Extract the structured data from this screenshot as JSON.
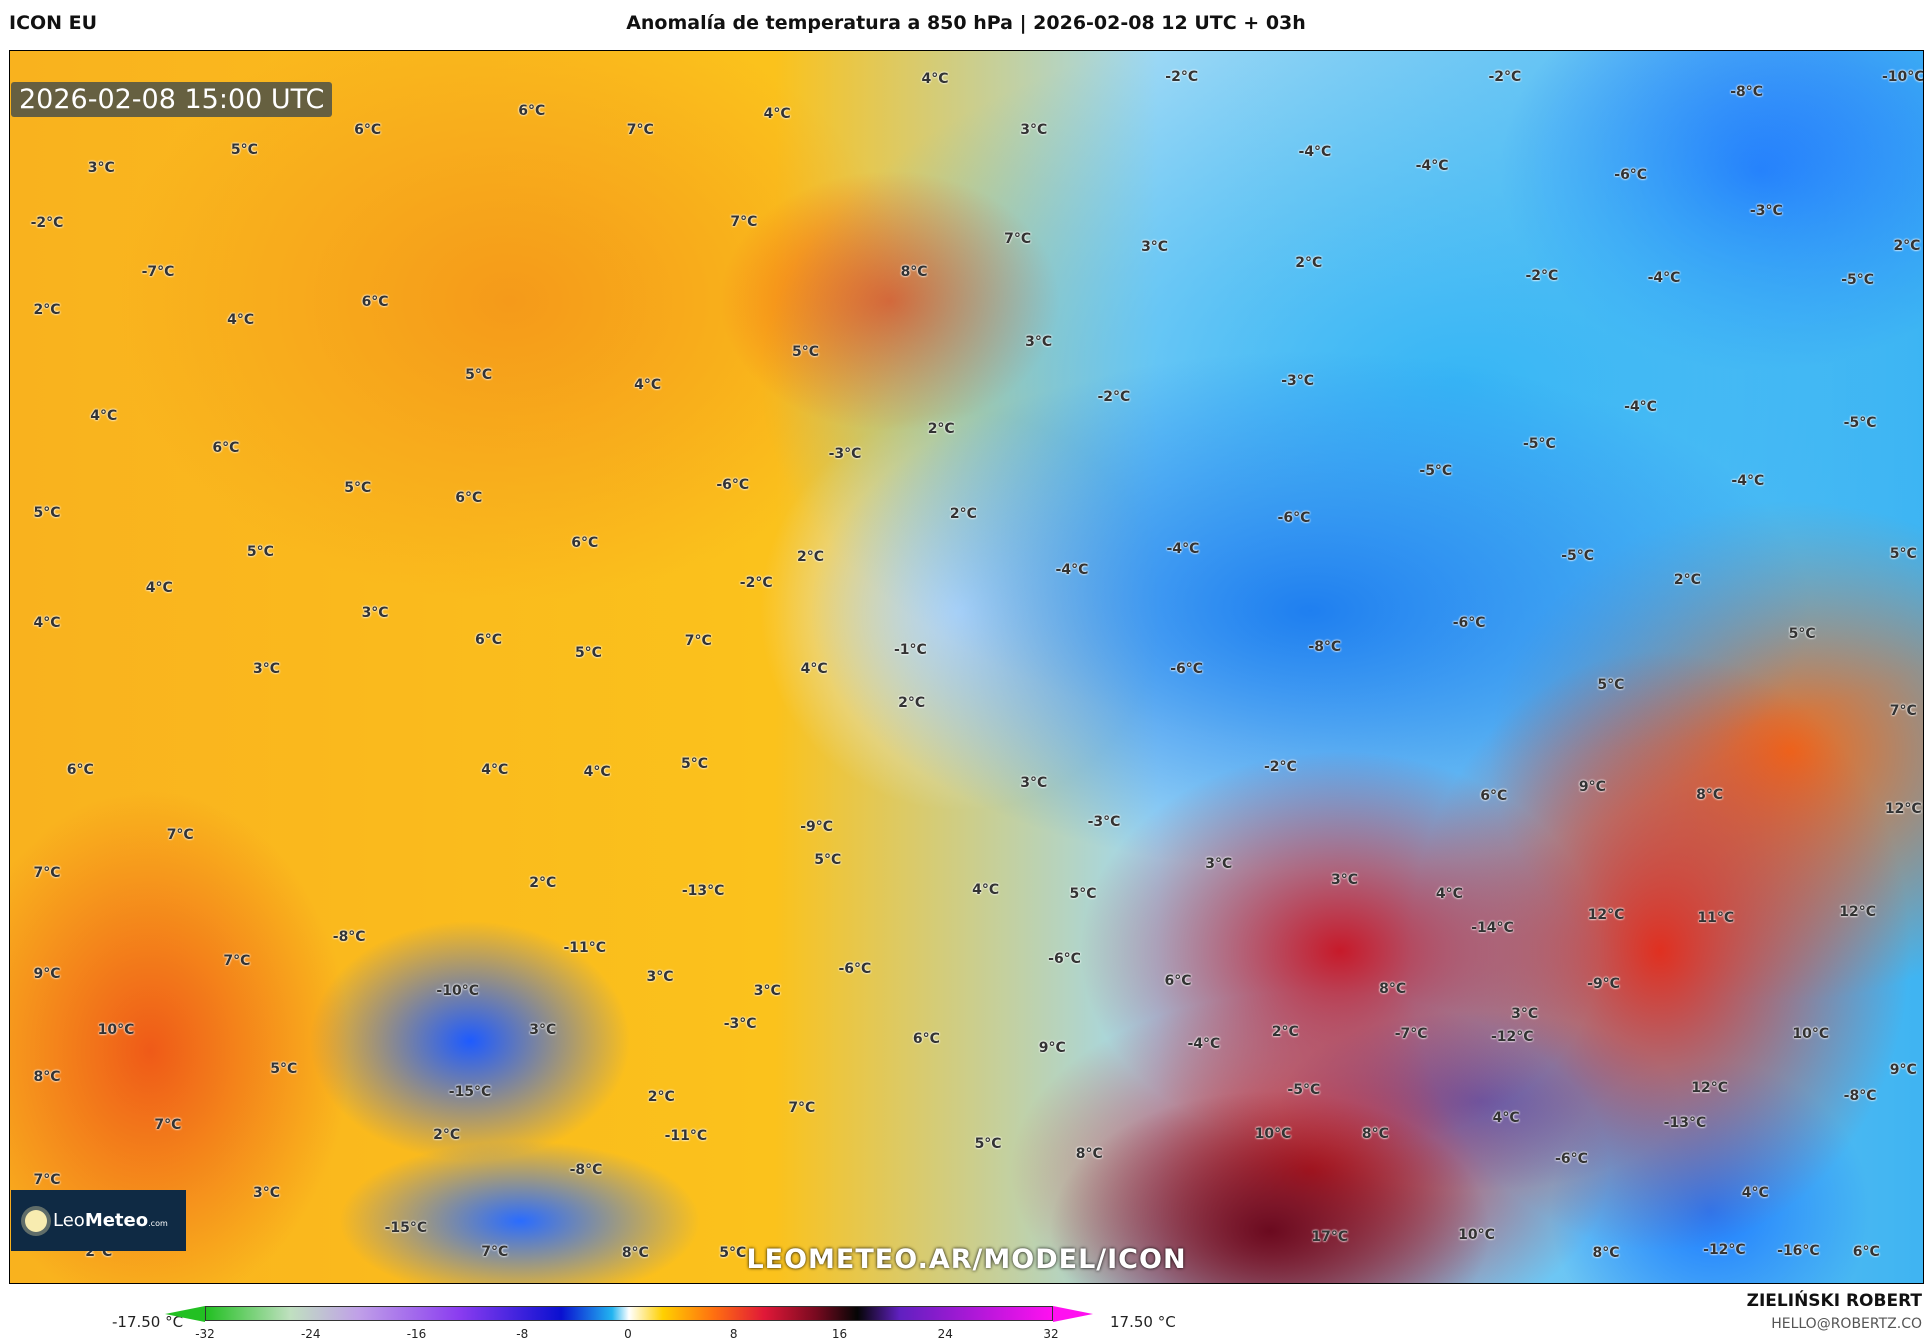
{
  "header": {
    "model": "ICON EU",
    "title": "Anomalía de temperatura a 850 hPa | 2026-02-08 12 UTC + 03h"
  },
  "map": {
    "timestamp": "2026-02-08 15:00 UTC",
    "watermark": "LEOMETEO.AR/MODEL/ICON",
    "logo": {
      "text_light": "Leo",
      "text_bold": "Meteo",
      "suffix": ".com",
      "icon": "sun-icon"
    },
    "labels": [
      "4°C",
      "-2°C",
      "-2°C",
      "-8°C",
      "-10°C",
      "6°C",
      "6°C",
      "7°C",
      "4°C",
      "3°C",
      "5°C",
      "3°C",
      "-4°C",
      "-4°C",
      "-6°C",
      "7°C",
      "7°C",
      "-3°C",
      "-2°C",
      "-7°C",
      "8°C",
      "3°C",
      "2°C",
      "-2°C",
      "-4°C",
      "-5°C",
      "2°C",
      "2°C",
      "6°C",
      "4°C",
      "3°C",
      "5°C",
      "5°C",
      "4°C",
      "-3°C",
      "-2°C",
      "-4°C",
      "-5°C",
      "4°C",
      "2°C",
      "-3°C",
      "6°C",
      "-5°C",
      "-5°C",
      "-4°C",
      "-6°C",
      "5°C",
      "5°C",
      "6°C",
      "2°C",
      "-6°C",
      "6°C",
      "-4°C",
      "5°C",
      "2°C",
      "-5°C",
      "5°C",
      "-4°C",
      "2°C",
      "4°C",
      "-2°C",
      "3°C",
      "4°C",
      "-6°C",
      "5°C",
      "6°C",
      "7°C",
      "-1°C",
      "-8°C",
      "5°C",
      "3°C",
      "4°C",
      "-6°C",
      "5°C",
      "2°C",
      "7°C",
      "6°C",
      "4°C",
      "4°C",
      "5°C",
      "-2°C",
      "3°C",
      "9°C",
      "6°C",
      "8°C",
      "12°C",
      "-3°C",
      "-9°C",
      "7°C",
      "5°C",
      "3°C",
      "3°C",
      "2°C",
      "7°C",
      "4°C",
      "5°C",
      "-13°C",
      "4°C",
      "-14°C",
      "12°C",
      "11°C",
      "12°C",
      "-8°C",
      "-11°C",
      "7°C",
      "-6°C",
      "9°C",
      "-10°C",
      "3°C",
      "-6°C",
      "6°C",
      "8°C",
      "-9°C",
      "3°C",
      "-3°C",
      "3°C",
      "10°C",
      "3°C",
      "2°C",
      "-7°C",
      "-12°C",
      "10°C",
      "6°C",
      "9°C",
      "-4°C",
      "5°C",
      "9°C",
      "8°C",
      "-15°C",
      "2°C",
      "-5°C",
      "12°C",
      "-8°C",
      "-13°C",
      "4°C",
      "7°C",
      "7°C",
      "2°C",
      "-11°C",
      "10°C",
      "8°C",
      "5°C",
      "8°C",
      "-8°C",
      "-6°C",
      "7°C",
      "3°C",
      "4°C",
      "-15°C",
      "17°C",
      "10°C",
      "2°C",
      "7°C",
      "8°C",
      "5°C",
      "8°C",
      "-12°C",
      "-16°C",
      "6°C"
    ]
  },
  "colorbar": {
    "min_label": "-17.50 °C",
    "max_label": "17.50 °C",
    "ticks": [
      "-32",
      "-24",
      "-16",
      "-8",
      "0",
      "8",
      "16",
      "24",
      "32"
    ],
    "colors": [
      "#22c022",
      "#c0a0e8",
      "#0a10d0",
      "#22b4f0",
      "#ffffff",
      "#ffd000",
      "#e01838",
      "#050505",
      "#ff10f0"
    ]
  },
  "credits": {
    "author": "ZIELIŃSKI ROBERT",
    "email": "HELLO@ROBERTZ.CO"
  }
}
